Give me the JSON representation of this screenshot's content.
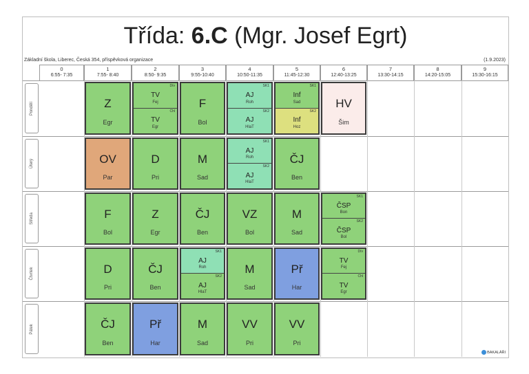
{
  "title": {
    "prefix": "Třída: ",
    "cls": "6.C",
    "teacher": " (Mgr. Josef Egrt)"
  },
  "school": "Základní škola, Liberec, Česká 354, příspěvková organizace",
  "date": "(1.9.2023)",
  "hours": [
    {
      "num": "0",
      "time": "6:55- 7:35"
    },
    {
      "num": "1",
      "time": "7:55- 8:40"
    },
    {
      "num": "2",
      "time": "8:50- 9:35"
    },
    {
      "num": "3",
      "time": "9:55-10:40"
    },
    {
      "num": "4",
      "time": "10:50-11:35"
    },
    {
      "num": "5",
      "time": "11:45-12:30"
    },
    {
      "num": "6",
      "time": "12:40-13:25"
    },
    {
      "num": "7",
      "time": "13:30-14:15"
    },
    {
      "num": "8",
      "time": "14:20-15:05"
    },
    {
      "num": "9",
      "time": "15:30-16:15"
    }
  ],
  "days": [
    "Pondělí",
    "Úterý",
    "Středa",
    "Čtvrtek",
    "Pátek"
  ],
  "lessons": [
    {
      "day": 0,
      "hour": 1,
      "color": "#8fd27a",
      "subj": "Z",
      "tch": "Egr"
    },
    {
      "day": 0,
      "hour": 2,
      "color": "#8fd27a",
      "split": [
        {
          "grp": "Dív",
          "subj": "TV",
          "tch": "Fej"
        },
        {
          "grp": "Chl",
          "subj": "TV",
          "tch": "Egr"
        }
      ]
    },
    {
      "day": 0,
      "hour": 3,
      "color": "#8fd27a",
      "subj": "F",
      "tch": "Bol"
    },
    {
      "day": 0,
      "hour": 4,
      "color": "#8fe0b5",
      "split": [
        {
          "grp": "SK1",
          "subj": "AJ",
          "tch": "Roh"
        },
        {
          "grp": "SK2",
          "subj": "AJ",
          "tch": "HlaT"
        }
      ]
    },
    {
      "day": 0,
      "hour": 5,
      "color": "#8fd27a",
      "split": [
        {
          "grp": "SK1",
          "subj": "Inf",
          "tch": "Sad"
        },
        {
          "grp": "SK2",
          "subj": "Inf",
          "tch": "Hoz",
          "color": "#dde07f"
        }
      ]
    },
    {
      "day": 0,
      "hour": 6,
      "color": "#fbecea",
      "subj": "HV",
      "tch": "Šim"
    },
    {
      "day": 1,
      "hour": 1,
      "color": "#e0a77a",
      "subj": "OV",
      "tch": "Par"
    },
    {
      "day": 1,
      "hour": 2,
      "color": "#8fd27a",
      "subj": "D",
      "tch": "Pri"
    },
    {
      "day": 1,
      "hour": 3,
      "color": "#8fd27a",
      "subj": "M",
      "tch": "Sad"
    },
    {
      "day": 1,
      "hour": 4,
      "color": "#8fe0b5",
      "split": [
        {
          "grp": "SK1",
          "subj": "AJ",
          "tch": "Roh"
        },
        {
          "grp": "SK2",
          "subj": "AJ",
          "tch": "HlaT"
        }
      ]
    },
    {
      "day": 1,
      "hour": 5,
      "color": "#8fd27a",
      "subj": "ČJ",
      "tch": "Ben"
    },
    {
      "day": 2,
      "hour": 1,
      "color": "#8fd27a",
      "subj": "F",
      "tch": "Bol"
    },
    {
      "day": 2,
      "hour": 2,
      "color": "#8fd27a",
      "subj": "Z",
      "tch": "Egr"
    },
    {
      "day": 2,
      "hour": 3,
      "color": "#8fd27a",
      "subj": "ČJ",
      "tch": "Ben"
    },
    {
      "day": 2,
      "hour": 4,
      "color": "#8fd27a",
      "subj": "VZ",
      "tch": "Bol"
    },
    {
      "day": 2,
      "hour": 5,
      "color": "#8fd27a",
      "subj": "M",
      "tch": "Sad"
    },
    {
      "day": 2,
      "hour": 6,
      "color": "#8fd27a",
      "split": [
        {
          "grp": "SK1",
          "subj": "ČSP",
          "tch": "Bon"
        },
        {
          "grp": "SK2",
          "subj": "ČSP",
          "tch": "Bol"
        }
      ]
    },
    {
      "day": 3,
      "hour": 1,
      "color": "#8fd27a",
      "subj": "D",
      "tch": "Pri"
    },
    {
      "day": 3,
      "hour": 2,
      "color": "#8fd27a",
      "subj": "ČJ",
      "tch": "Ben"
    },
    {
      "day": 3,
      "hour": 3,
      "color": "#8fe0b5",
      "split": [
        {
          "grp": "SK1",
          "subj": "AJ",
          "tch": "Roh"
        },
        {
          "grp": "SK2",
          "subj": "AJ",
          "tch": "HlaT",
          "color": "#8fd27a"
        }
      ]
    },
    {
      "day": 3,
      "hour": 4,
      "color": "#8fd27a",
      "subj": "M",
      "tch": "Sad"
    },
    {
      "day": 3,
      "hour": 5,
      "color": "#7f9fe0",
      "subj": "Př",
      "tch": "Har"
    },
    {
      "day": 3,
      "hour": 6,
      "color": "#8fd27a",
      "split": [
        {
          "grp": "Dív",
          "subj": "TV",
          "tch": "Fej"
        },
        {
          "grp": "Chl",
          "subj": "TV",
          "tch": "Egr"
        }
      ]
    },
    {
      "day": 4,
      "hour": 1,
      "color": "#8fd27a",
      "subj": "ČJ",
      "tch": "Ben"
    },
    {
      "day": 4,
      "hour": 2,
      "color": "#7f9fe0",
      "subj": "Př",
      "tch": "Har"
    },
    {
      "day": 4,
      "hour": 3,
      "color": "#8fd27a",
      "subj": "M",
      "tch": "Sad"
    },
    {
      "day": 4,
      "hour": 4,
      "color": "#8fd27a",
      "subj": "VV",
      "tch": "Pri"
    },
    {
      "day": 4,
      "hour": 5,
      "color": "#8fd27a",
      "subj": "VV",
      "tch": "Pri"
    }
  ],
  "logo": "BAKALÁŘI"
}
